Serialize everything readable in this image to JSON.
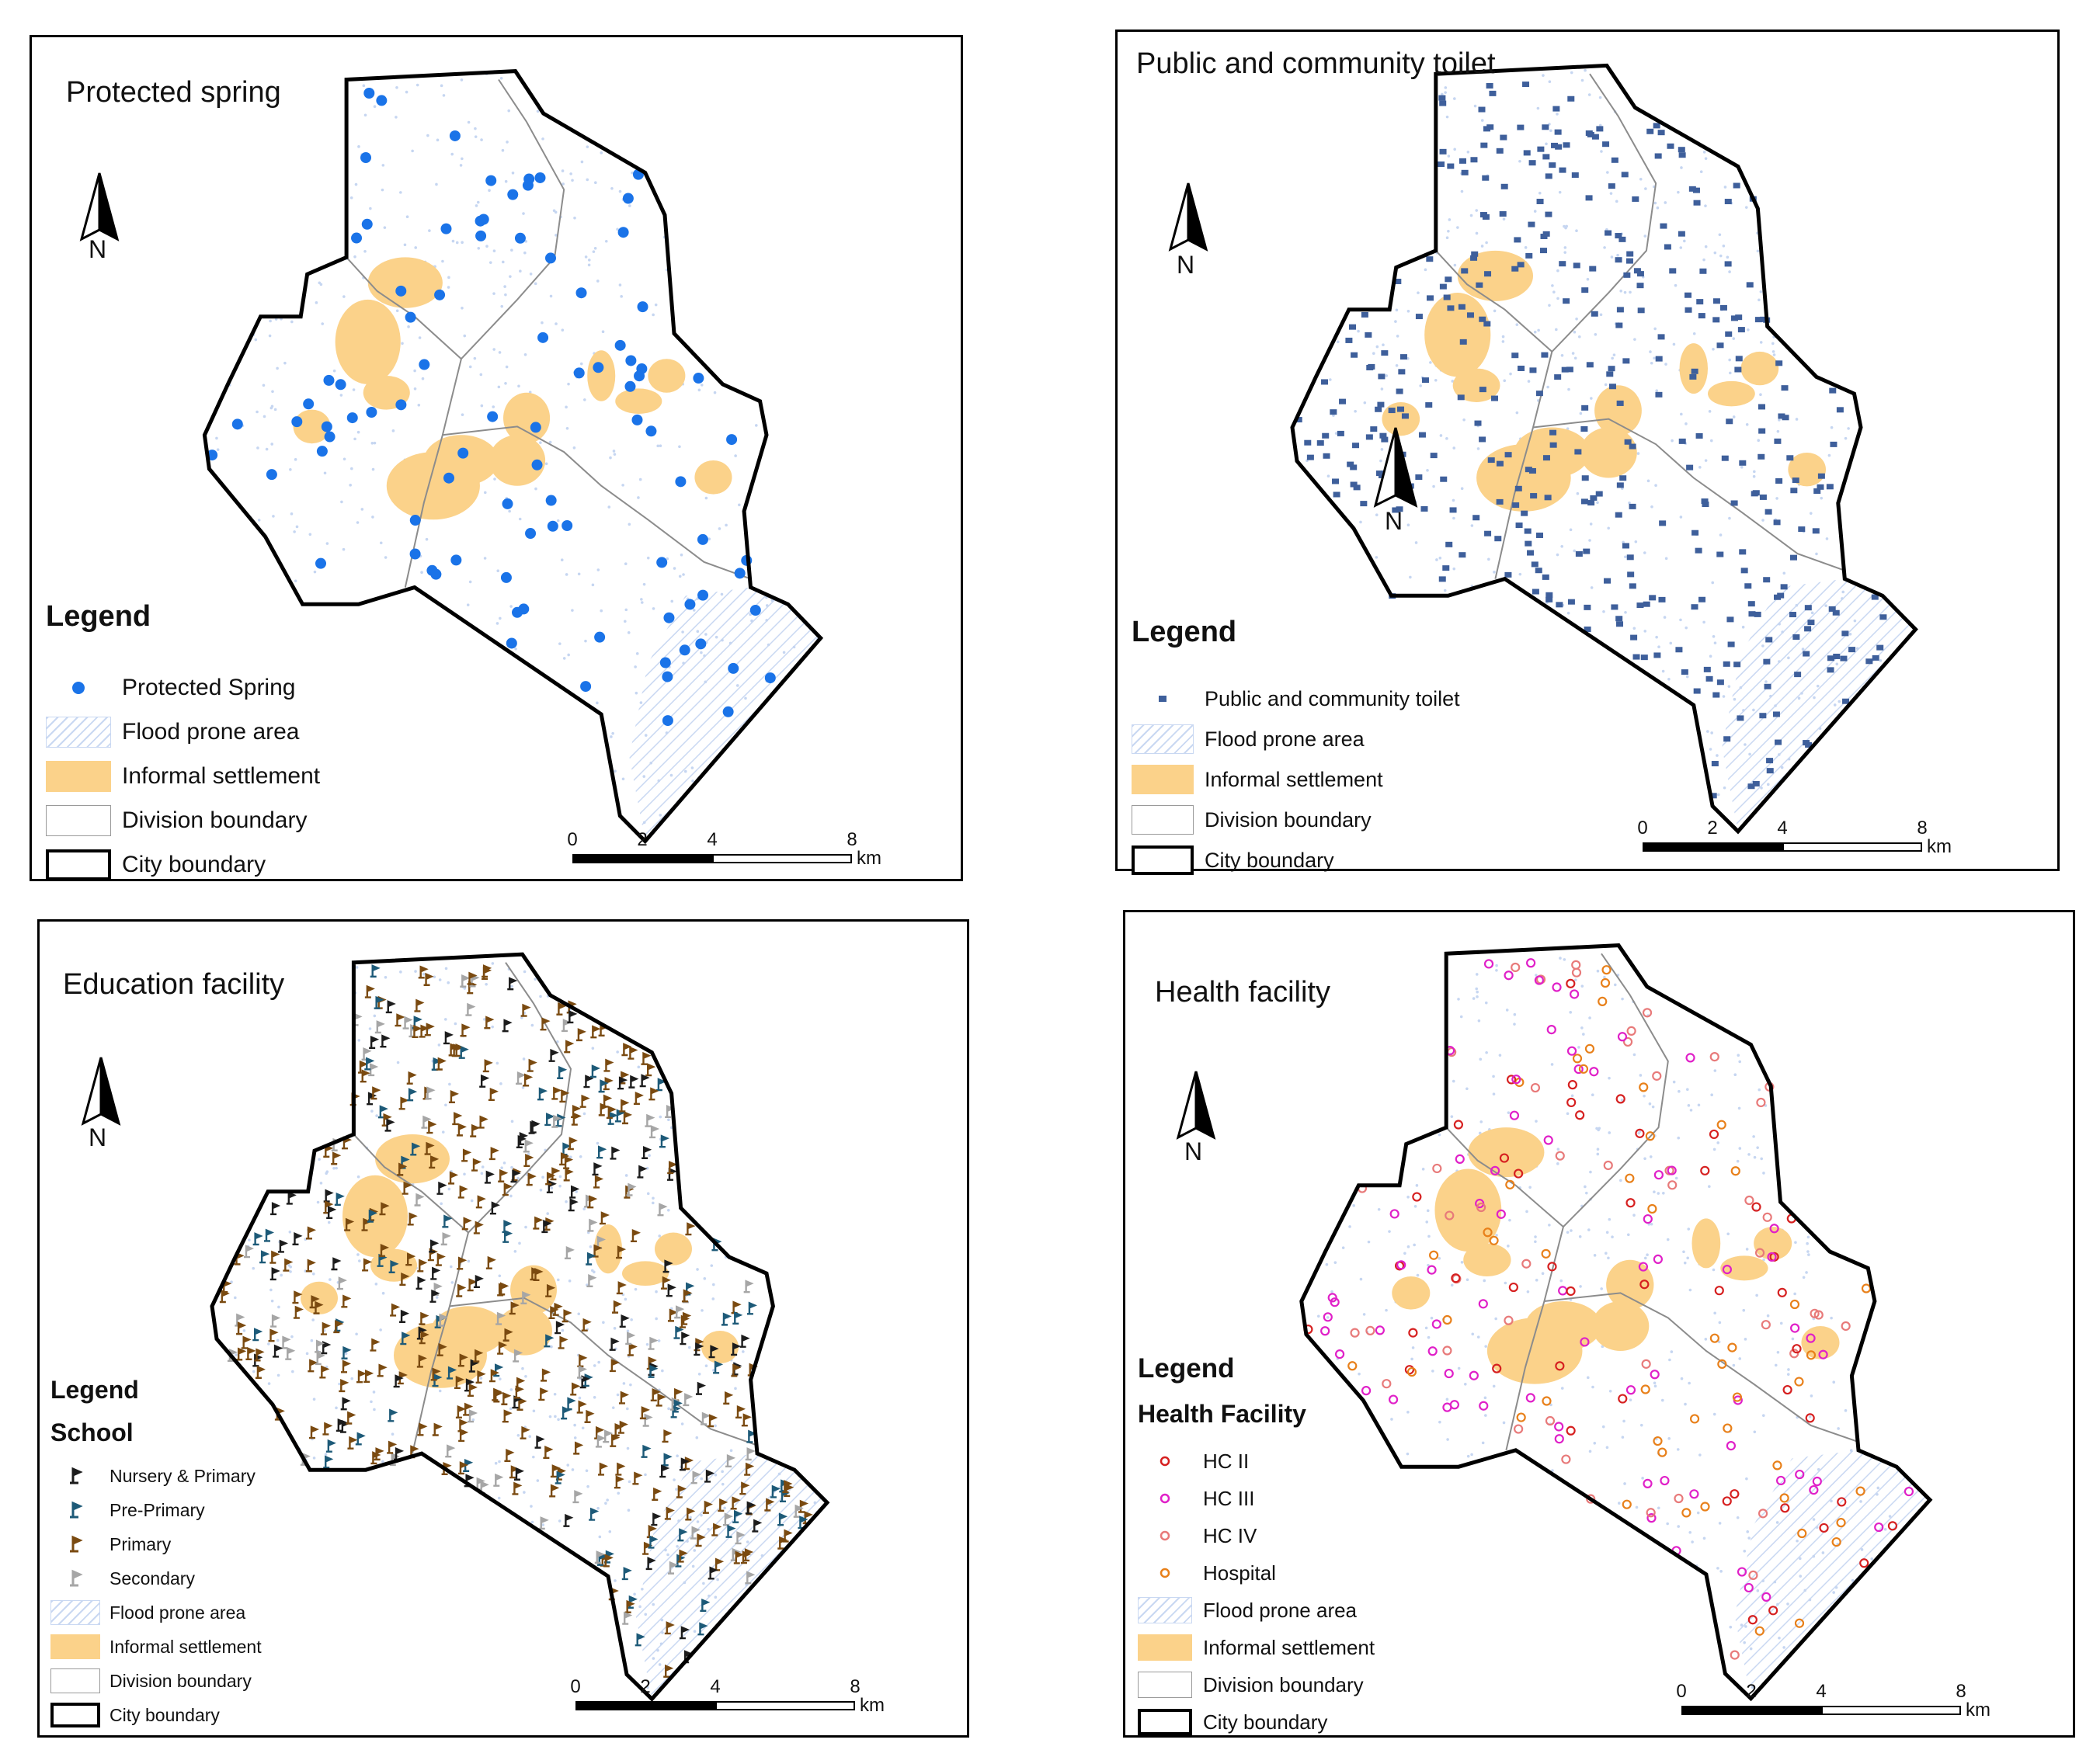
{
  "panels": [
    {
      "id": "spring",
      "title": "Protected spring",
      "north_label": "N",
      "legend_heading": "Legend",
      "legend_subheading": "",
      "legend_items": [
        {
          "label": "Protected Spring",
          "symbol": "dot",
          "color": "#1a73e8"
        },
        {
          "label": "Flood prone area",
          "symbol": "hatch"
        },
        {
          "label": "Informal settlement",
          "symbol": "orange",
          "color": "#fbd28a"
        },
        {
          "label": "Division boundary",
          "symbol": "division"
        },
        {
          "label": "City boundary",
          "symbol": "city"
        }
      ],
      "scale_ticks": [
        "0",
        "2",
        "4",
        "8"
      ],
      "scale_unit": "km"
    },
    {
      "id": "toilet",
      "title": "Public and community toilet",
      "north_label": "N",
      "legend_heading": "Legend",
      "legend_subheading": "",
      "legend_items": [
        {
          "label": "Public and community toilet",
          "symbol": "square",
          "color": "#3e5f9b"
        },
        {
          "label": "Flood prone area",
          "symbol": "hatch"
        },
        {
          "label": "Informal settlement",
          "symbol": "orange",
          "color": "#fbd28a"
        },
        {
          "label": "Division boundary",
          "symbol": "division"
        },
        {
          "label": "City boundary",
          "symbol": "city"
        }
      ],
      "scale_ticks": [
        "0",
        "2",
        "4",
        "8"
      ],
      "scale_unit": "km"
    },
    {
      "id": "education",
      "title": "Education facility",
      "north_label": "N",
      "legend_heading": "Legend",
      "legend_subheading": "School",
      "legend_items": [
        {
          "label": "Nursery & Primary",
          "symbol": "flag",
          "color": "#1c1c1c"
        },
        {
          "label": "Pre-Primary",
          "symbol": "flag",
          "color": "#1d5a78"
        },
        {
          "label": "Primary",
          "symbol": "flag",
          "color": "#7a4a10"
        },
        {
          "label": "Secondary",
          "symbol": "flag",
          "color": "#a6a6a6"
        },
        {
          "label": "Flood prone area",
          "symbol": "hatch"
        },
        {
          "label": "Informal settlement",
          "symbol": "orange",
          "color": "#fbd28a"
        },
        {
          "label": "Division boundary",
          "symbol": "division"
        },
        {
          "label": "City boundary",
          "symbol": "city"
        }
      ],
      "scale_ticks": [
        "0",
        "2",
        "4",
        "8"
      ],
      "scale_unit": "km"
    },
    {
      "id": "health",
      "title": "Health facility",
      "north_label": "N",
      "legend_heading": "Legend",
      "legend_subheading": "Health Facility",
      "legend_items": [
        {
          "label": "HC II",
          "symbol": "ring",
          "color": "#d62020"
        },
        {
          "label": "HC III",
          "symbol": "ring",
          "color": "#e020c8"
        },
        {
          "label": "HC IV",
          "symbol": "ring",
          "color": "#e87a7a"
        },
        {
          "label": "Hospital",
          "symbol": "ring",
          "color": "#e8801a"
        },
        {
          "label": "Flood prone area",
          "symbol": "hatch"
        },
        {
          "label": "Informal settlement",
          "symbol": "orange",
          "color": "#fbd28a"
        },
        {
          "label": "Division boundary",
          "symbol": "division"
        },
        {
          "label": "City boundary",
          "symbol": "city"
        }
      ],
      "scale_ticks": [
        "0",
        "2",
        "4",
        "8"
      ],
      "scale_unit": "km"
    }
  ]
}
